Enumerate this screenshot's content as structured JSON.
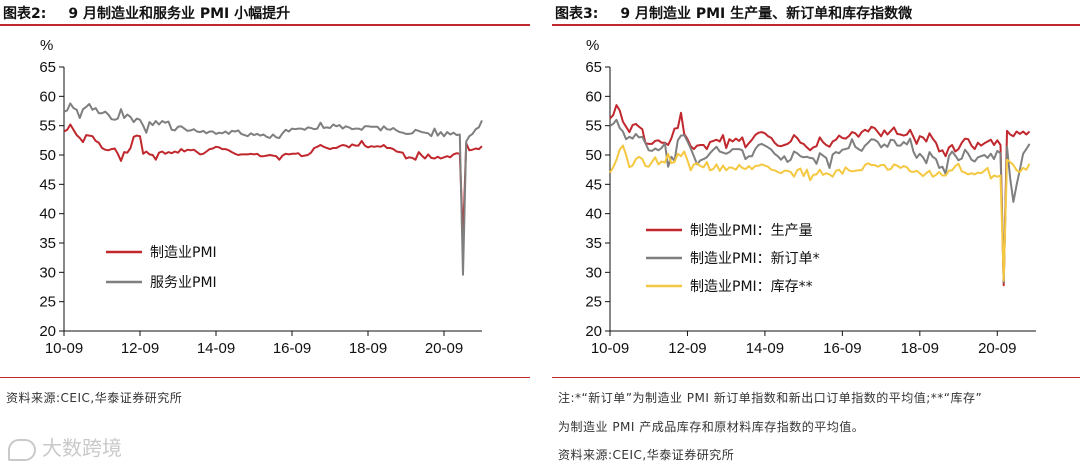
{
  "left": {
    "fig_label": "图表2:",
    "fig_title": "9 月制造业和服务业 PMI 小幅提升",
    "source": "资料来源:CEIC,华泰证券研究所"
  },
  "right": {
    "fig_label": "图表3:",
    "fig_title": "9 月制造业 PMI 生产量、新订单和库存指数微",
    "note_line1": "注:*“新订单”为制造业 PMI 新订单指数和新出口订单指数的平均值;**“库存”",
    "note_line2": "为制造业 PMI 产成品库存和原材料库存指数的平均值。",
    "source": "资料来源:CEIC,华泰证券研究所"
  },
  "watermark": "大数跨境",
  "chart_data": [
    {
      "type": "line",
      "title": "9 月制造业和服务业 PMI 小幅提升",
      "ylabel": "%",
      "ylim": [
        20,
        65
      ],
      "yticks": [
        20,
        25,
        30,
        35,
        40,
        45,
        50,
        55,
        60,
        65
      ],
      "xlim": [
        0,
        132
      ],
      "xticks": [
        0,
        24,
        48,
        72,
        96,
        120
      ],
      "xtick_labels": [
        "10-09",
        "12-09",
        "14-09",
        "16-09",
        "18-09",
        "20-09"
      ],
      "legend_position": "lower-left",
      "series": [
        {
          "name": "制造业PMI",
          "color": "#c0282d",
          "values": [
            54.0,
            54.3,
            55.2,
            54.3,
            53.4,
            52.9,
            52.2,
            53.4,
            53.3,
            53.2,
            52.4,
            52.1,
            51.2,
            50.9,
            50.8,
            51.0,
            51.1,
            50.2,
            49.0,
            50.5,
            50.4,
            51.2,
            53.1,
            53.3,
            53.2,
            50.2,
            50.6,
            50.1,
            50.0,
            49.2,
            50.4,
            50.6,
            50.2,
            50.5,
            50.3,
            50.6,
            50.4,
            51.0,
            50.6,
            50.9,
            50.8,
            50.9,
            50.5,
            50.1,
            50.2,
            50.6,
            51.0,
            51.1,
            51.4,
            51.3,
            51.0,
            51.0,
            50.8,
            50.5,
            50.2,
            50.0,
            50.1,
            50.1,
            50.1,
            50.2,
            50.1,
            50.2,
            49.8,
            49.8,
            49.9,
            50.0,
            49.9,
            49.8,
            49.2,
            49.9,
            50.2,
            50.1,
            50.2,
            50.2,
            50.3,
            49.8,
            49.9,
            50.0,
            50.4,
            51.2,
            51.4,
            51.7,
            51.4,
            51.2,
            51.0,
            51.2,
            51.2,
            51.5,
            51.7,
            51.6,
            51.3,
            51.8,
            51.6,
            51.6,
            52.4,
            51.6,
            51.3,
            51.5,
            51.4,
            51.5,
            51.4,
            51.7,
            51.2,
            51.2,
            51.0,
            50.6,
            50.5,
            50.4,
            49.4,
            49.6,
            49.5,
            49.2,
            50.5,
            49.9,
            49.4,
            50.1,
            49.5,
            49.4,
            49.7,
            49.4,
            49.6,
            49.8,
            49.6,
            50.1,
            50.3,
            50.2,
            35.7,
            52.0,
            50.8,
            50.9,
            51.1,
            51.0,
            51.5
          ]
        },
        {
          "name": "服务业PMI",
          "color": "#7f7f7f",
          "values": [
            57.4,
            57.6,
            58.8,
            58.0,
            57.7,
            56.3,
            57.8,
            58.2,
            58.7,
            57.7,
            58.0,
            57.1,
            57.1,
            57.4,
            56.9,
            56.1,
            56.0,
            56.2,
            57.8,
            56.3,
            56.9,
            56.5,
            55.6,
            56.2,
            56.0,
            55.0,
            53.8,
            55.6,
            55.1,
            55.8,
            55.2,
            55.8,
            55.5,
            55.7,
            54.3,
            54.2,
            54.8,
            54.9,
            54.5,
            54.1,
            54.2,
            54.4,
            54.0,
            53.9,
            54.1,
            53.7,
            54.0,
            54.0,
            53.6,
            53.8,
            53.7,
            54.0,
            53.6,
            54.1,
            54.0,
            54.2,
            53.6,
            53.4,
            53.2,
            53.7,
            53.4,
            53.6,
            53.3,
            53.5,
            53.1,
            52.9,
            53.5,
            53.0,
            52.9,
            53.7,
            54.3,
            54.0,
            54.5,
            54.4,
            54.5,
            54.5,
            54.3,
            54.7,
            54.6,
            54.4,
            54.5,
            55.5,
            54.6,
            54.7,
            54.6,
            55.2,
            54.9,
            55.1,
            54.5,
            54.9,
            54.7,
            54.4,
            54.5,
            54.5,
            54.3,
            54.9,
            54.9,
            54.8,
            54.8,
            54.8,
            54.2,
            54.9,
            54.4,
            54.3,
            54.6,
            54.2,
            53.9,
            53.8,
            53.6,
            53.6,
            53.7,
            54.3,
            54.1,
            53.9,
            53.8,
            53.7,
            53.2,
            54.5,
            53.3,
            53.9,
            53.2,
            53.9,
            53.5,
            53.8,
            53.4,
            53.5,
            29.6,
            52.3,
            53.2,
            53.6,
            54.4,
            54.7,
            55.9
          ]
        }
      ]
    },
    {
      "type": "line",
      "title": "9 月制造业 PMI 生产量、新订单和库存指数微",
      "ylabel": "%",
      "ylim": [
        20,
        65
      ],
      "yticks": [
        20,
        25,
        30,
        35,
        40,
        45,
        50,
        55,
        60,
        65
      ],
      "xlim": [
        0,
        132
      ],
      "xticks": [
        0,
        24,
        48,
        72,
        96,
        120
      ],
      "xtick_labels": [
        "10-09",
        "12-09",
        "14-09",
        "16-09",
        "18-09",
        "20-09"
      ],
      "legend_position": "lower-left",
      "series": [
        {
          "name": "制造业PMI：生产量",
          "color": "#c0282d",
          "values": [
            56.2,
            56.8,
            58.5,
            57.6,
            55.7,
            54.8,
            53.9,
            55.1,
            55.3,
            54.8,
            54.4,
            52.0,
            51.9,
            51.9,
            52.4,
            52.5,
            52.1,
            52.1,
            51.7,
            52.8,
            54.5,
            54.6,
            57.2,
            53.6,
            52.7,
            51.5,
            51.0,
            51.6,
            51.7,
            51.7,
            51.0,
            52.2,
            52.4,
            52.6,
            52.3,
            53.4,
            51.2,
            52.7,
            52.3,
            52.8,
            52.4,
            53.0,
            51.3,
            52.0,
            52.6,
            53.4,
            53.8,
            53.9,
            53.7,
            53.2,
            52.9,
            52.1,
            51.6,
            51.5,
            51.7,
            51.9,
            52.3,
            53.4,
            52.9,
            52.1,
            51.9,
            51.3,
            50.8,
            51.3,
            51.5,
            53.0,
            52.2,
            51.7,
            51.4,
            52.3,
            52.6,
            53.3,
            52.9,
            52.8,
            53.2,
            53.9,
            53.7,
            53.1,
            53.9,
            54.3,
            54.0,
            54.8,
            54.6,
            53.9,
            53.2,
            54.2,
            53.5,
            54.1,
            54.7,
            53.6,
            53.5,
            53.3,
            53.5,
            54.3,
            53.1,
            51.9,
            53.2,
            53.0,
            52.3,
            53.7,
            52.8,
            52.1,
            50.6,
            50.8,
            49.8,
            51.3,
            51.7,
            50.6,
            51.0,
            52.1,
            52.8,
            52.7,
            51.6,
            51.0,
            52.1,
            51.6,
            52.0,
            52.3,
            52.6,
            51.7,
            52.5,
            51.7,
            27.8,
            54.1,
            53.5,
            53.2,
            54.0,
            53.6,
            54.0,
            53.5,
            54.0
          ]
        },
        {
          "name": "制造业PMI：新订单*",
          "color": "#7f7f7f",
          "values": [
            55.0,
            55.3,
            56.0,
            54.6,
            54.0,
            52.7,
            53.1,
            52.8,
            53.6,
            53.0,
            53.1,
            52.0,
            50.8,
            50.7,
            51.1,
            50.8,
            51.2,
            52.0,
            48.0,
            49.7,
            49.0,
            52.5,
            53.3,
            53.4,
            52.3,
            51.1,
            49.8,
            48.4,
            49.1,
            49.3,
            49.6,
            50.3,
            50.9,
            51.4,
            50.6,
            50.4,
            50.2,
            50.5,
            51.0,
            51.0,
            51.0,
            50.8,
            49.3,
            49.8,
            49.8,
            51.0,
            51.7,
            51.9,
            51.6,
            51.3,
            50.9,
            50.2,
            49.8,
            49.2,
            49.8,
            48.8,
            49.2,
            50.6,
            50.3,
            49.8,
            49.6,
            49.7,
            49.5,
            49.4,
            48.5,
            50.3,
            49.9,
            49.5,
            47.8,
            50.1,
            50.5,
            50.3,
            50.9,
            51.0,
            51.2,
            52.7,
            51.4,
            51.0,
            50.7,
            51.6,
            52.1,
            52.7,
            52.6,
            52.2,
            51.3,
            51.8,
            51.4,
            52.6,
            52.5,
            51.6,
            51.6,
            52.2,
            51.8,
            52.8,
            50.6,
            49.5,
            50.2,
            49.6,
            48.6,
            50.5,
            49.7,
            49.3,
            47.8,
            48.0,
            46.8,
            49.8,
            50.6,
            49.9,
            49.1,
            49.4,
            50.9,
            50.2,
            49.2,
            48.9,
            49.6,
            49.8,
            50.0,
            49.5,
            50.2,
            49.3,
            50.7,
            50.3,
            28.3,
            51.4,
            46.0,
            42.0,
            44.9,
            47.5,
            50.2,
            51.0,
            51.9
          ]
        },
        {
          "name": "制造业PMI：库存**",
          "color": "#f5c842",
          "values": [
            47.0,
            47.9,
            49.2,
            50.9,
            51.6,
            50.0,
            47.9,
            48.2,
            49.3,
            49.7,
            49.3,
            48.1,
            48.0,
            48.8,
            49.6,
            48.4,
            48.9,
            48.7,
            50.2,
            48.6,
            48.8,
            50.2,
            49.8,
            50.6,
            49.1,
            47.4,
            48.4,
            48.6,
            48.1,
            47.9,
            48.8,
            47.4,
            47.6,
            48.4,
            47.3,
            48.2,
            47.4,
            47.9,
            47.8,
            47.5,
            48.3,
            47.8,
            47.6,
            48.1,
            47.6,
            48.1,
            48.2,
            48.4,
            48.2,
            48.0,
            47.5,
            47.4,
            47.1,
            46.9,
            47.3,
            47.3,
            47.1,
            46.3,
            47.4,
            47.7,
            46.4,
            47.5,
            45.7,
            46.6,
            46.7,
            47.5,
            46.6,
            46.9,
            46.7,
            46.3,
            47.3,
            47.5,
            46.8,
            47.9,
            47.4,
            47.2,
            47.3,
            47.4,
            47.4,
            48.3,
            48.6,
            48.3,
            48.3,
            48.0,
            48.3,
            48.3,
            47.5,
            47.6,
            48.4,
            48.2,
            47.8,
            48.1,
            47.9,
            47.2,
            47.1,
            47.3,
            46.9,
            46.4,
            46.9,
            47.3,
            46.3,
            46.6,
            47.1,
            46.5,
            46.5,
            47.3,
            47.4,
            48.1,
            48.5,
            47.2,
            47.0,
            46.7,
            46.9,
            46.7,
            47.0,
            46.9,
            47.3,
            47.8,
            46.0,
            46.5,
            46.3,
            46.5,
            28.6,
            49.2,
            48.8,
            48.3,
            47.4,
            47.1,
            47.8,
            47.5,
            48.5
          ]
        }
      ]
    }
  ]
}
